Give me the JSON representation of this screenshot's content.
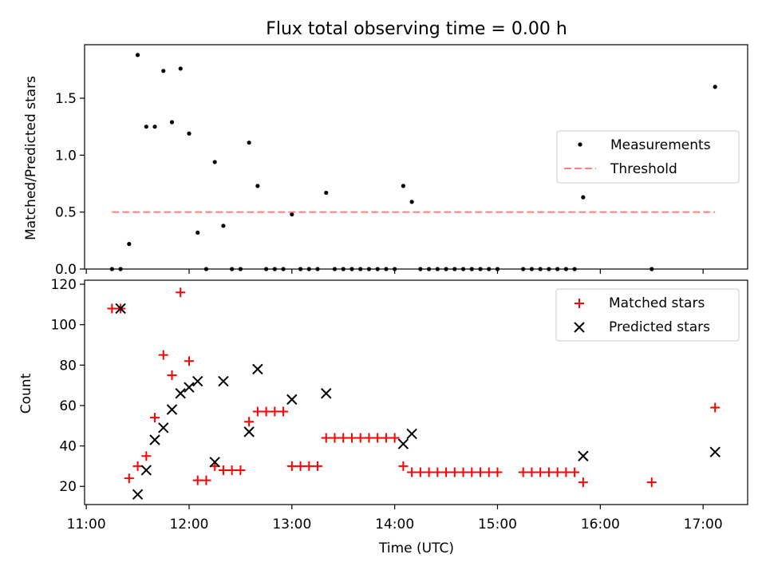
{
  "chart_data": [
    {
      "type": "scatter",
      "title": "Flux total observing time = 0.00 h",
      "xlabel": "",
      "ylabel": "Matched/Predicted stars",
      "xlim": [
        "10:59",
        "17:26"
      ],
      "ylim": [
        0,
        1.97
      ],
      "yticks": [
        0.0,
        0.5,
        1.0,
        1.5
      ],
      "ytick_labels": [
        "0.0",
        "0.5",
        "1.0",
        "1.5"
      ],
      "xticks": [
        "11:00",
        "12:00",
        "13:00",
        "14:00",
        "15:00",
        "16:00",
        "17:00"
      ],
      "legend": {
        "placement": "center-right",
        "entries": [
          "Measurements",
          "Threshold"
        ]
      },
      "series": [
        {
          "name": "Measurements",
          "color": "#000000",
          "marker": "dot",
          "points": [
            [
              "11:15",
              0.0
            ],
            [
              "11:20",
              0.0
            ],
            [
              "11:25",
              0.22
            ],
            [
              "11:30",
              1.88
            ],
            [
              "11:35",
              1.25
            ],
            [
              "11:40",
              1.25
            ],
            [
              "11:45",
              1.74
            ],
            [
              "11:50",
              1.29
            ],
            [
              "11:55",
              1.76
            ],
            [
              "12:00",
              1.19
            ],
            [
              "12:05",
              0.32
            ],
            [
              "12:10",
              0.0
            ],
            [
              "12:15",
              0.94
            ],
            [
              "12:20",
              0.38
            ],
            [
              "12:25",
              0.0
            ],
            [
              "12:30",
              0.0
            ],
            [
              "12:35",
              1.11
            ],
            [
              "12:40",
              0.73
            ],
            [
              "12:45",
              0.0
            ],
            [
              "12:50",
              0.0
            ],
            [
              "12:55",
              0.0
            ],
            [
              "13:00",
              0.48
            ],
            [
              "13:05",
              0.0
            ],
            [
              "13:10",
              0.0
            ],
            [
              "13:15",
              0.0
            ],
            [
              "13:20",
              0.67
            ],
            [
              "13:25",
              0.0
            ],
            [
              "13:30",
              0.0
            ],
            [
              "13:35",
              0.0
            ],
            [
              "13:40",
              0.0
            ],
            [
              "13:45",
              0.0
            ],
            [
              "13:50",
              0.0
            ],
            [
              "13:55",
              0.0
            ],
            [
              "14:00",
              0.0
            ],
            [
              "14:05",
              0.73
            ],
            [
              "14:10",
              0.59
            ],
            [
              "14:15",
              0.0
            ],
            [
              "14:20",
              0.0
            ],
            [
              "14:25",
              0.0
            ],
            [
              "14:30",
              0.0
            ],
            [
              "14:35",
              0.0
            ],
            [
              "14:40",
              0.0
            ],
            [
              "14:45",
              0.0
            ],
            [
              "14:50",
              0.0
            ],
            [
              "14:55",
              0.0
            ],
            [
              "15:00",
              0.0
            ],
            [
              "15:15",
              0.0
            ],
            [
              "15:20",
              0.0
            ],
            [
              "15:25",
              0.0
            ],
            [
              "15:30",
              0.0
            ],
            [
              "15:35",
              0.0
            ],
            [
              "15:40",
              0.0
            ],
            [
              "15:45",
              0.0
            ],
            [
              "15:50",
              0.63
            ],
            [
              "16:30",
              0.0
            ],
            [
              "17:07",
              1.6
            ]
          ]
        },
        {
          "name": "Threshold",
          "color": "#ff7f7f",
          "style": "dashed",
          "points": [
            [
              "11:15",
              0.5
            ],
            [
              "17:07",
              0.5
            ]
          ]
        }
      ]
    },
    {
      "type": "scatter",
      "title": "",
      "xlabel": "Time (UTC)",
      "ylabel": "Count",
      "xlim": [
        "10:59",
        "17:26"
      ],
      "ylim": [
        11,
        122
      ],
      "yticks": [
        20,
        40,
        60,
        80,
        100,
        120
      ],
      "ytick_labels": [
        "20",
        "40",
        "60",
        "80",
        "100",
        "120"
      ],
      "xticks": [
        "11:00",
        "12:00",
        "13:00",
        "14:00",
        "15:00",
        "16:00",
        "17:00"
      ],
      "legend": {
        "placement": "top-right",
        "entries": [
          "Matched stars",
          "Predicted stars"
        ]
      },
      "series": [
        {
          "name": "Matched stars",
          "color": "#ff0000",
          "marker": "plus",
          "points": [
            [
              "11:15",
              108
            ],
            [
              "11:20",
              108
            ],
            [
              "11:25",
              24
            ],
            [
              "11:30",
              30
            ],
            [
              "11:35",
              35
            ],
            [
              "11:40",
              54
            ],
            [
              "11:45",
              85
            ],
            [
              "11:50",
              75
            ],
            [
              "11:55",
              116
            ],
            [
              "12:00",
              82
            ],
            [
              "12:05",
              23
            ],
            [
              "12:10",
              23
            ],
            [
              "12:15",
              30
            ],
            [
              "12:20",
              28
            ],
            [
              "12:25",
              28
            ],
            [
              "12:30",
              28
            ],
            [
              "12:35",
              52
            ],
            [
              "12:40",
              57
            ],
            [
              "12:45",
              57
            ],
            [
              "12:50",
              57
            ],
            [
              "12:55",
              57
            ],
            [
              "13:00",
              30
            ],
            [
              "13:05",
              30
            ],
            [
              "13:10",
              30
            ],
            [
              "13:15",
              30
            ],
            [
              "13:20",
              44
            ],
            [
              "13:25",
              44
            ],
            [
              "13:30",
              44
            ],
            [
              "13:35",
              44
            ],
            [
              "13:40",
              44
            ],
            [
              "13:45",
              44
            ],
            [
              "13:50",
              44
            ],
            [
              "13:55",
              44
            ],
            [
              "14:00",
              44
            ],
            [
              "14:05",
              30
            ],
            [
              "14:10",
              27
            ],
            [
              "14:15",
              27
            ],
            [
              "14:20",
              27
            ],
            [
              "14:25",
              27
            ],
            [
              "14:30",
              27
            ],
            [
              "14:35",
              27
            ],
            [
              "14:40",
              27
            ],
            [
              "14:45",
              27
            ],
            [
              "14:50",
              27
            ],
            [
              "14:55",
              27
            ],
            [
              "15:00",
              27
            ],
            [
              "15:15",
              27
            ],
            [
              "15:20",
              27
            ],
            [
              "15:25",
              27
            ],
            [
              "15:30",
              27
            ],
            [
              "15:35",
              27
            ],
            [
              "15:40",
              27
            ],
            [
              "15:45",
              27
            ],
            [
              "15:50",
              22
            ],
            [
              "16:30",
              22
            ],
            [
              "17:07",
              59
            ]
          ]
        },
        {
          "name": "Predicted stars",
          "color": "#000000",
          "marker": "x",
          "points": [
            [
              "11:20",
              108
            ],
            [
              "11:30",
              16
            ],
            [
              "11:35",
              28
            ],
            [
              "11:40",
              43
            ],
            [
              "11:45",
              49
            ],
            [
              "11:50",
              58
            ],
            [
              "11:55",
              66
            ],
            [
              "12:00",
              69
            ],
            [
              "12:05",
              72
            ],
            [
              "12:15",
              32
            ],
            [
              "12:20",
              72
            ],
            [
              "12:35",
              47
            ],
            [
              "12:40",
              78
            ],
            [
              "13:00",
              63
            ],
            [
              "13:20",
              66
            ],
            [
              "14:05",
              41
            ],
            [
              "14:10",
              46
            ],
            [
              "15:50",
              35
            ],
            [
              "17:07",
              37
            ]
          ]
        }
      ]
    }
  ]
}
